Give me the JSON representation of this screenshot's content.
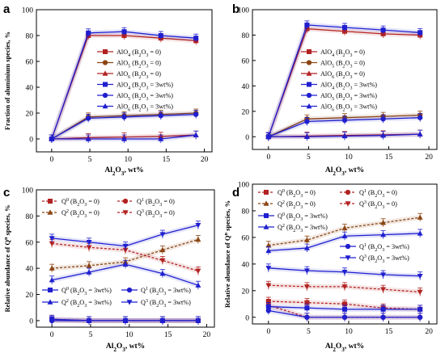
{
  "chart_data": [
    {
      "panel": "a",
      "type": "line",
      "xlabel": "Al2O3, wt%",
      "ylabel": "Fraction of aluminium species, %",
      "xlim": [
        -2,
        21
      ],
      "ylim": [
        -10,
        100
      ],
      "xticks": [
        0,
        5,
        10,
        15,
        20
      ],
      "yticks": [
        0,
        20,
        40,
        60,
        80,
        100
      ],
      "legend_position": "center-right",
      "series": [
        {
          "name": "AlO4 (B2O3 = 0)",
          "color": "#b22222",
          "marker": "square",
          "dashed": false,
          "x": [
            0,
            4.8,
            9.5,
            14.3,
            18.9
          ],
          "y": [
            0,
            80,
            80,
            78,
            76
          ]
        },
        {
          "name": "AlO5 (B2O3 = 0)",
          "color": "#8b4513",
          "marker": "circle",
          "dashed": false,
          "x": [
            0,
            4.8,
            9.5,
            14.3,
            18.9
          ],
          "y": [
            0,
            17,
            18,
            19,
            20
          ]
        },
        {
          "name": "AlO6 (B2O3 = 0)",
          "color": "#b22222",
          "marker": "triangle-up",
          "dashed": false,
          "x": [
            0,
            4.8,
            9.5,
            14.3,
            18.9
          ],
          "y": [
            0,
            1,
            1.5,
            2,
            3
          ]
        },
        {
          "name": "AlO4 (B2O3 = 3wt%)",
          "color": "#1f1fcf",
          "marker": "square",
          "dashed": false,
          "x": [
            0,
            4.8,
            9.5,
            14.3,
            18.9
          ],
          "y": [
            0,
            82,
            83,
            80,
            78
          ]
        },
        {
          "name": "AlO5 (B2O3 = 3wt%)",
          "color": "#1f1fcf",
          "marker": "circle",
          "dashed": false,
          "x": [
            0,
            4.8,
            9.5,
            14.3,
            18.9
          ],
          "y": [
            0,
            16,
            17,
            18,
            19
          ]
        },
        {
          "name": "AlO6 (B2O3 = 3wt%)",
          "color": "#1f1fcf",
          "marker": "triangle-up",
          "dashed": false,
          "x": [
            0,
            4.8,
            9.5,
            14.3,
            18.9
          ],
          "y": [
            0,
            0,
            0,
            0,
            3
          ]
        }
      ]
    },
    {
      "panel": "b",
      "type": "line",
      "xlabel": "Al2O3, wt%",
      "ylabel": "",
      "xlim": [
        -2,
        21
      ],
      "ylim": [
        -10,
        100
      ],
      "xticks": [
        0,
        5,
        10,
        15,
        20
      ],
      "yticks": [
        0,
        20,
        40,
        60,
        80,
        100
      ],
      "legend_position": "center-right",
      "series": [
        {
          "name": "AlO4 (B2O3 = 0)",
          "color": "#b22222",
          "marker": "square",
          "dashed": false,
          "x": [
            0,
            4.8,
            9.5,
            14.3,
            18.9
          ],
          "y": [
            0,
            85,
            83,
            81,
            80
          ]
        },
        {
          "name": "AlO5 (B2O3 = 0)",
          "color": "#8b4513",
          "marker": "circle",
          "dashed": false,
          "x": [
            0,
            4.8,
            9.5,
            14.3,
            18.9
          ],
          "y": [
            0,
            14,
            15,
            16,
            17
          ]
        },
        {
          "name": "AlO6 (B2O3 = 0)",
          "color": "#b22222",
          "marker": "triangle-up",
          "dashed": false,
          "x": [
            0,
            4.8,
            9.5,
            14.3,
            18.9
          ],
          "y": [
            0,
            0.5,
            1,
            1.5,
            2
          ]
        },
        {
          "name": "AlO4 (B2O3 = 3wt%)",
          "color": "#1f1fcf",
          "marker": "square",
          "dashed": false,
          "x": [
            0,
            4.8,
            9.5,
            14.3,
            18.9
          ],
          "y": [
            0,
            88,
            86,
            84,
            82
          ]
        },
        {
          "name": "AlO5 (B2O3 = 3wt%)",
          "color": "#1f1fcf",
          "marker": "circle",
          "dashed": false,
          "x": [
            0,
            4.8,
            9.5,
            14.3,
            18.9
          ],
          "y": [
            0,
            12,
            13,
            14,
            15
          ]
        },
        {
          "name": "AlO6 (B2O3 = 3wt%)",
          "color": "#1f1fcf",
          "marker": "triangle-up",
          "dashed": false,
          "x": [
            0,
            4.8,
            9.5,
            14.3,
            18.9
          ],
          "y": [
            0,
            0,
            0.5,
            1,
            2
          ]
        }
      ]
    },
    {
      "panel": "c",
      "type": "line",
      "xlabel": "Al2O3, wt%",
      "ylabel": "Relative abundance of Qn species, %",
      "xlim": [
        -2,
        21
      ],
      "ylim": [
        -5,
        100
      ],
      "xticks": [
        0,
        5,
        10,
        15,
        20
      ],
      "yticks": [
        0,
        20,
        40,
        60,
        80,
        100
      ],
      "legend_position": "top and bottom",
      "series": [
        {
          "name": "Q0 (B2O3 = 0)",
          "color": "#b22222",
          "marker": "square",
          "dashed": true,
          "x": [
            0,
            4.8,
            9.5,
            14.3,
            18.9
          ],
          "y": [
            1,
            0,
            0,
            0,
            0
          ]
        },
        {
          "name": "Q1 (B2O3 = 0)",
          "color": "#b22222",
          "marker": "circle",
          "dashed": true,
          "x": [
            0,
            4.8,
            9.5,
            14.3,
            18.9
          ],
          "y": [
            0,
            0,
            0,
            0,
            0
          ]
        },
        {
          "name": "Q2 (B2O3 = 0)",
          "color": "#8b4513",
          "marker": "triangle-up",
          "dashed": true,
          "x": [
            0,
            4.8,
            9.5,
            14.3,
            18.9
          ],
          "y": [
            40,
            42,
            45,
            54,
            62
          ]
        },
        {
          "name": "Q3 (B2O3 = 0)",
          "color": "#b22222",
          "marker": "triangle-down",
          "dashed": true,
          "x": [
            0,
            4.8,
            9.5,
            14.3,
            18.9
          ],
          "y": [
            59,
            56,
            54,
            46,
            38
          ]
        },
        {
          "name": "Q0 (B2O3 = 3wt%)",
          "color": "#1f1fcf",
          "marker": "square",
          "dashed": false,
          "x": [
            0,
            4.8,
            9.5,
            14.3,
            18.9
          ],
          "y": [
            1,
            0,
            0,
            0,
            0
          ]
        },
        {
          "name": "Q1 (B2O3 = 3wt%)",
          "color": "#1f1fcf",
          "marker": "circle",
          "dashed": false,
          "x": [
            0,
            4.8,
            9.5,
            14.3,
            18.9
          ],
          "y": [
            0,
            0,
            0,
            0,
            0
          ]
        },
        {
          "name": "Q2 (B2O3 = 3wt%)",
          "color": "#1f1fcf",
          "marker": "triangle-up",
          "dashed": false,
          "x": [
            0,
            4.8,
            9.5,
            14.3,
            18.9
          ],
          "y": [
            31,
            37,
            43,
            36,
            27
          ]
        },
        {
          "name": "Q3 (B2O3 = 3wt%)",
          "color": "#1f1fcf",
          "marker": "triangle-down",
          "dashed": false,
          "x": [
            0,
            4.8,
            9.5,
            14.3,
            18.9
          ],
          "y": [
            63,
            60,
            57,
            66,
            73
          ]
        }
      ]
    },
    {
      "panel": "d",
      "type": "line",
      "xlabel": "Al2O3, wt%",
      "ylabel": "Relative abundance of Qn species, %",
      "xlim": [
        -2,
        21
      ],
      "ylim": [
        -5,
        100
      ],
      "xticks": [
        0,
        5,
        10,
        15,
        20
      ],
      "yticks": [
        0,
        20,
        40,
        60,
        80,
        100
      ],
      "legend_position": "top and middle-right",
      "series": [
        {
          "name": "Q0 (B2O3 = 0)",
          "color": "#b22222",
          "marker": "square",
          "dashed": true,
          "x": [
            0,
            4.8,
            9.5,
            14.3,
            18.9
          ],
          "y": [
            12,
            11,
            10,
            7,
            6
          ]
        },
        {
          "name": "Q1 (B2O3 = 0)",
          "color": "#b22222",
          "marker": "circle",
          "dashed": true,
          "x": [
            0,
            4.8,
            9.5,
            14.3,
            18.9
          ],
          "y": [
            9,
            0,
            0,
            0,
            0
          ]
        },
        {
          "name": "Q2 (B2O3 = 0)",
          "color": "#8b4513",
          "marker": "triangle-up",
          "dashed": true,
          "x": [
            0,
            4.8,
            9.5,
            14.3,
            18.9
          ],
          "y": [
            54,
            58,
            67,
            71,
            75
          ]
        },
        {
          "name": "Q3 (B2O3 = 0)",
          "color": "#b22222",
          "marker": "triangle-down",
          "dashed": true,
          "x": [
            0,
            4.8,
            9.5,
            14.3,
            18.9
          ],
          "y": [
            24,
            23,
            23,
            21,
            19
          ]
        },
        {
          "name": "Q0 (B2O3 = 3wt%)",
          "color": "#1f1fcf",
          "marker": "square",
          "dashed": false,
          "x": [
            0,
            4.8,
            9.5,
            14.3,
            18.9
          ],
          "y": [
            8,
            7,
            6,
            6,
            6
          ]
        },
        {
          "name": "Q1 (B2O3 = 3wt%)",
          "color": "#1f1fcf",
          "marker": "circle",
          "dashed": false,
          "x": [
            0,
            4.8,
            9.5,
            14.3,
            18.9
          ],
          "y": [
            5,
            0,
            0,
            0,
            0
          ]
        },
        {
          "name": "Q2 (B2O3 = 3wt%)",
          "color": "#1f1fcf",
          "marker": "triangle-up",
          "dashed": false,
          "x": [
            0,
            4.8,
            9.5,
            14.3,
            18.9
          ],
          "y": [
            50,
            52,
            61,
            62,
            63
          ]
        },
        {
          "name": "Q3 (B2O3 = 3wt%)",
          "color": "#1f1fcf",
          "marker": "triangle-down",
          "dashed": false,
          "x": [
            0,
            4.8,
            9.5,
            14.3,
            18.9
          ],
          "y": [
            37,
            35,
            34,
            32,
            31
          ]
        }
      ]
    }
  ]
}
